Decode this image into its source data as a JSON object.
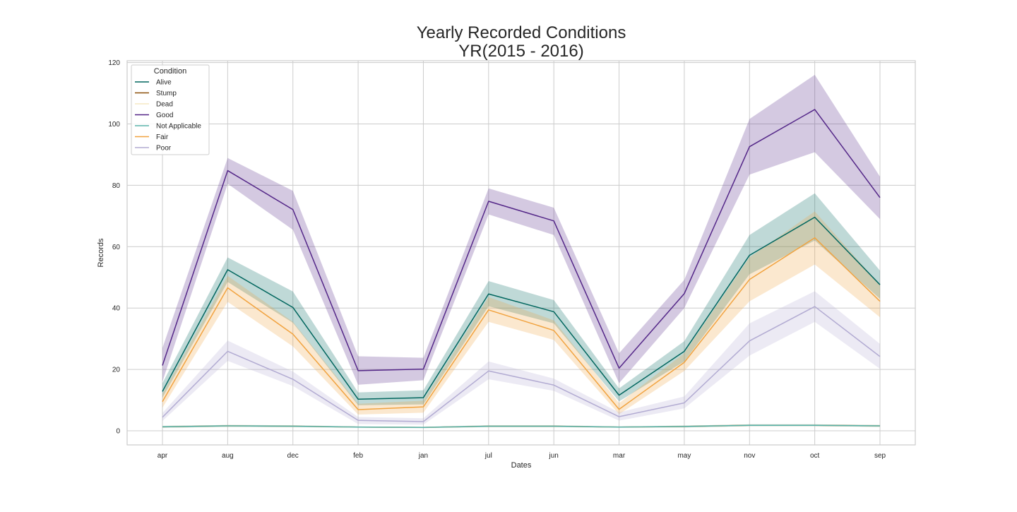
{
  "chart_data": {
    "type": "line",
    "title_line1": "Yearly Recorded Conditions",
    "title_line2": "YR(2015 - 2016)",
    "xlabel": "Dates",
    "ylabel": "Records",
    "ylim": [
      -4.6,
      120.6
    ],
    "yticks": [
      0,
      20,
      40,
      60,
      80,
      100,
      120
    ],
    "grid": true,
    "legend": {
      "title": "Condition",
      "position": "top-left"
    },
    "categories": [
      "apr",
      "aug",
      "dec",
      "feb",
      "jan",
      "jul",
      "jun",
      "mar",
      "may",
      "nov",
      "oct",
      "sep"
    ],
    "series": [
      {
        "name": "Alive",
        "color": "#01665e",
        "values": [
          12.8,
          52.5,
          40.2,
          10.3,
          10.8,
          44.6,
          38.8,
          11.6,
          25.9,
          57.2,
          69.6,
          47.6
        ],
        "ci_low": [
          10.8,
          48.5,
          35.2,
          8.3,
          8.6,
          40.6,
          35.0,
          9.6,
          22.6,
          51.0,
          62.0,
          43.0
        ],
        "ci_high": [
          15.5,
          56.5,
          45.4,
          12.5,
          13.2,
          48.8,
          42.6,
          13.8,
          29.2,
          63.8,
          77.4,
          52.2
        ]
      },
      {
        "name": "Stump",
        "color": "#8c510a",
        "values": [
          1.3,
          1.6,
          1.5,
          1.2,
          1.1,
          1.5,
          1.5,
          1.2,
          1.4,
          1.8,
          1.8,
          1.6
        ],
        "ci_low": [
          1.0,
          1.3,
          1.2,
          1.0,
          0.9,
          1.2,
          1.2,
          1.0,
          1.1,
          1.5,
          1.5,
          1.3
        ],
        "ci_high": [
          1.6,
          1.9,
          1.8,
          1.4,
          1.3,
          1.8,
          1.8,
          1.4,
          1.7,
          2.1,
          2.1,
          1.9
        ]
      },
      {
        "name": "Dead",
        "color": "#f6e8c3",
        "values": [
          1.3,
          1.6,
          1.5,
          1.2,
          1.1,
          1.5,
          1.5,
          1.2,
          1.4,
          1.8,
          1.8,
          1.6
        ],
        "ci_low": [
          1.0,
          1.3,
          1.2,
          1.0,
          0.9,
          1.2,
          1.2,
          1.0,
          1.1,
          1.5,
          1.5,
          1.3
        ],
        "ci_high": [
          1.6,
          1.9,
          1.8,
          1.4,
          1.3,
          1.8,
          1.8,
          1.4,
          1.7,
          2.1,
          2.1,
          1.9
        ]
      },
      {
        "name": "Good",
        "color": "#542788",
        "values": [
          21.3,
          84.8,
          72.1,
          19.6,
          20.1,
          74.8,
          68.4,
          20.4,
          44.7,
          92.6,
          104.7,
          76.0
        ],
        "ci_low": [
          16.0,
          80.5,
          65.5,
          15.0,
          16.5,
          70.5,
          63.8,
          15.5,
          40.0,
          83.5,
          90.8,
          69.0
        ],
        "ci_high": [
          27.0,
          88.9,
          78.2,
          24.3,
          23.8,
          79.0,
          72.7,
          25.3,
          49.2,
          101.6,
          116.0,
          82.8
        ]
      },
      {
        "name": "Not Applicable",
        "color": "#5ab4ac",
        "values": [
          1.3,
          1.6,
          1.5,
          1.2,
          1.1,
          1.5,
          1.5,
          1.2,
          1.4,
          1.8,
          1.8,
          1.6
        ],
        "ci_low": [
          1.0,
          1.3,
          1.2,
          1.0,
          0.9,
          1.2,
          1.2,
          1.0,
          1.1,
          1.5,
          1.5,
          1.3
        ],
        "ci_high": [
          1.6,
          1.9,
          1.8,
          1.4,
          1.3,
          1.8,
          1.8,
          1.4,
          1.7,
          2.1,
          2.1,
          1.9
        ]
      },
      {
        "name": "Fair",
        "color": "#f1a340",
        "values": [
          9.5,
          46.6,
          31.5,
          6.9,
          7.8,
          39.4,
          32.7,
          7.0,
          22.3,
          49.3,
          62.9,
          42.2
        ],
        "ci_low": [
          7.5,
          42.0,
          27.5,
          5.3,
          5.9,
          35.5,
          29.6,
          5.4,
          19.5,
          42.2,
          54.2,
          37.0
        ],
        "ci_high": [
          12.0,
          50.5,
          35.5,
          8.8,
          9.8,
          43.6,
          36.0,
          9.0,
          25.3,
          56.5,
          71.5,
          47.5
        ]
      },
      {
        "name": "Poor",
        "color": "#b2abd2",
        "values": [
          4.4,
          25.9,
          16.8,
          3.4,
          3.0,
          19.5,
          14.9,
          4.6,
          9.1,
          29.3,
          40.5,
          24.2
        ],
        "ci_low": [
          3.2,
          22.8,
          14.6,
          2.2,
          2.0,
          16.8,
          13.0,
          3.3,
          7.3,
          24.5,
          35.5,
          20.2
        ],
        "ci_high": [
          5.8,
          29.4,
          19.3,
          4.5,
          4.1,
          22.6,
          17.0,
          6.0,
          11.2,
          35.0,
          45.5,
          28.3
        ]
      }
    ]
  }
}
